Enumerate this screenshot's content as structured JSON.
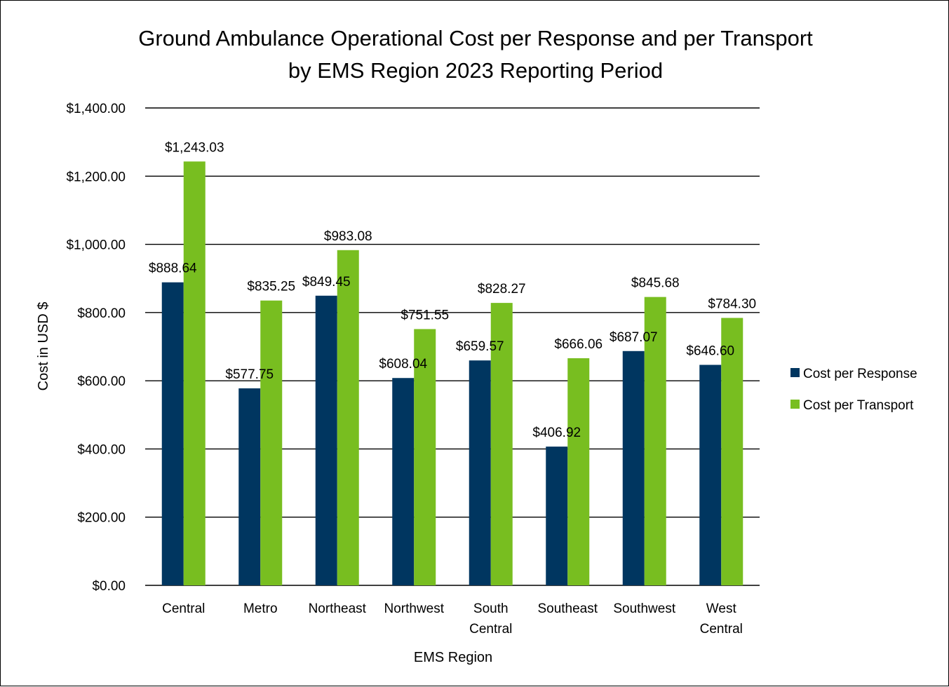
{
  "colors": {
    "response": "#003660",
    "transport": "#78be20",
    "grid": "#000000"
  },
  "chart_data": {
    "type": "bar",
    "title": "Ground Ambulance Operational Cost per Response and per Transport by EMS Region 2023 Reporting Period",
    "title_lines": [
      "Ground Ambulance Operational Cost per Response and per Transport",
      "by EMS Region 2023 Reporting Period"
    ],
    "xlabel": "EMS Region",
    "ylabel": "Cost in USD $",
    "ylim": [
      0,
      1400
    ],
    "y_ticks": [
      0,
      200,
      400,
      600,
      800,
      1000,
      1200,
      1400
    ],
    "y_tick_labels": [
      "$0.00",
      "$200.00",
      "$400.00",
      "$600.00",
      "$800.00",
      "$1,000.00",
      "$1,200.00",
      "$1,400.00"
    ],
    "grid": true,
    "legend_position": "right",
    "categories": [
      [
        "Central"
      ],
      [
        "Metro"
      ],
      [
        "Northeast"
      ],
      [
        "Northwest"
      ],
      [
        "South",
        "Central"
      ],
      [
        "Southeast"
      ],
      [
        "Southwest"
      ],
      [
        "West",
        "Central"
      ]
    ],
    "series": [
      {
        "name": "Cost per Response",
        "values": [
          888.64,
          577.75,
          849.45,
          608.04,
          659.57,
          406.92,
          687.07,
          646.6
        ],
        "labels": [
          "$888.64",
          "$577.75",
          "$849.45",
          "$608.04",
          "$659.57",
          "$406.92",
          "$687.07",
          "$646.60"
        ]
      },
      {
        "name": "Cost per Transport",
        "values": [
          1243.03,
          835.25,
          983.08,
          751.55,
          828.27,
          666.06,
          845.68,
          784.3
        ],
        "labels": [
          "$1,243.03",
          "$835.25",
          "$983.08",
          "$751.55",
          "$828.27",
          "$666.06",
          "$845.68",
          "$784.30"
        ]
      }
    ]
  }
}
